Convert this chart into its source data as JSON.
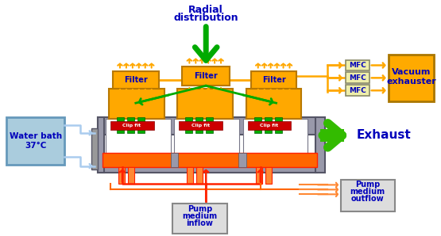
{
  "colors": {
    "gold": "#FFA800",
    "dark_gold": "#B87800",
    "green": "#00AA00",
    "dark_green": "#006600",
    "orange": "#FF6600",
    "red": "#FF2200",
    "gray": "#9999AA",
    "mid_gray": "#777788",
    "dark_gray": "#555566",
    "light_blue": "#AACCEE",
    "blue_border": "#6699BB",
    "blue_text": "#1111AA",
    "blue_bold": "#0000BB",
    "white": "#FFFFFF",
    "green_bright": "#33BB00",
    "orange_med": "#FF8833",
    "mfc_fill": "#EEEEAA",
    "mfc_border": "#888866",
    "pump_fill": "#DDDDDD",
    "pump_border": "#888888",
    "vacuum_fill": "#FFAA00",
    "vacuum_border": "#AA7700",
    "clip_red": "#CC0000",
    "water_fill": "#AACCDD",
    "water_border": "#7799BB",
    "connector_gray": "#999999"
  },
  "radial_text": [
    "Radial",
    "distribution"
  ],
  "exhaust_text": "Exhaust",
  "water_bath_text": [
    "Water bath",
    "37°C"
  ],
  "vacuum_text": [
    "Vacuum",
    "exhauster"
  ],
  "pump_inflow_text": [
    "Pump",
    "medium",
    "inflow"
  ],
  "pump_outflow_text": [
    "Pump",
    "medium",
    "outflow"
  ],
  "filter_text": "Filter",
  "clip_text": "Clip fit",
  "mfc_text": "MFC"
}
